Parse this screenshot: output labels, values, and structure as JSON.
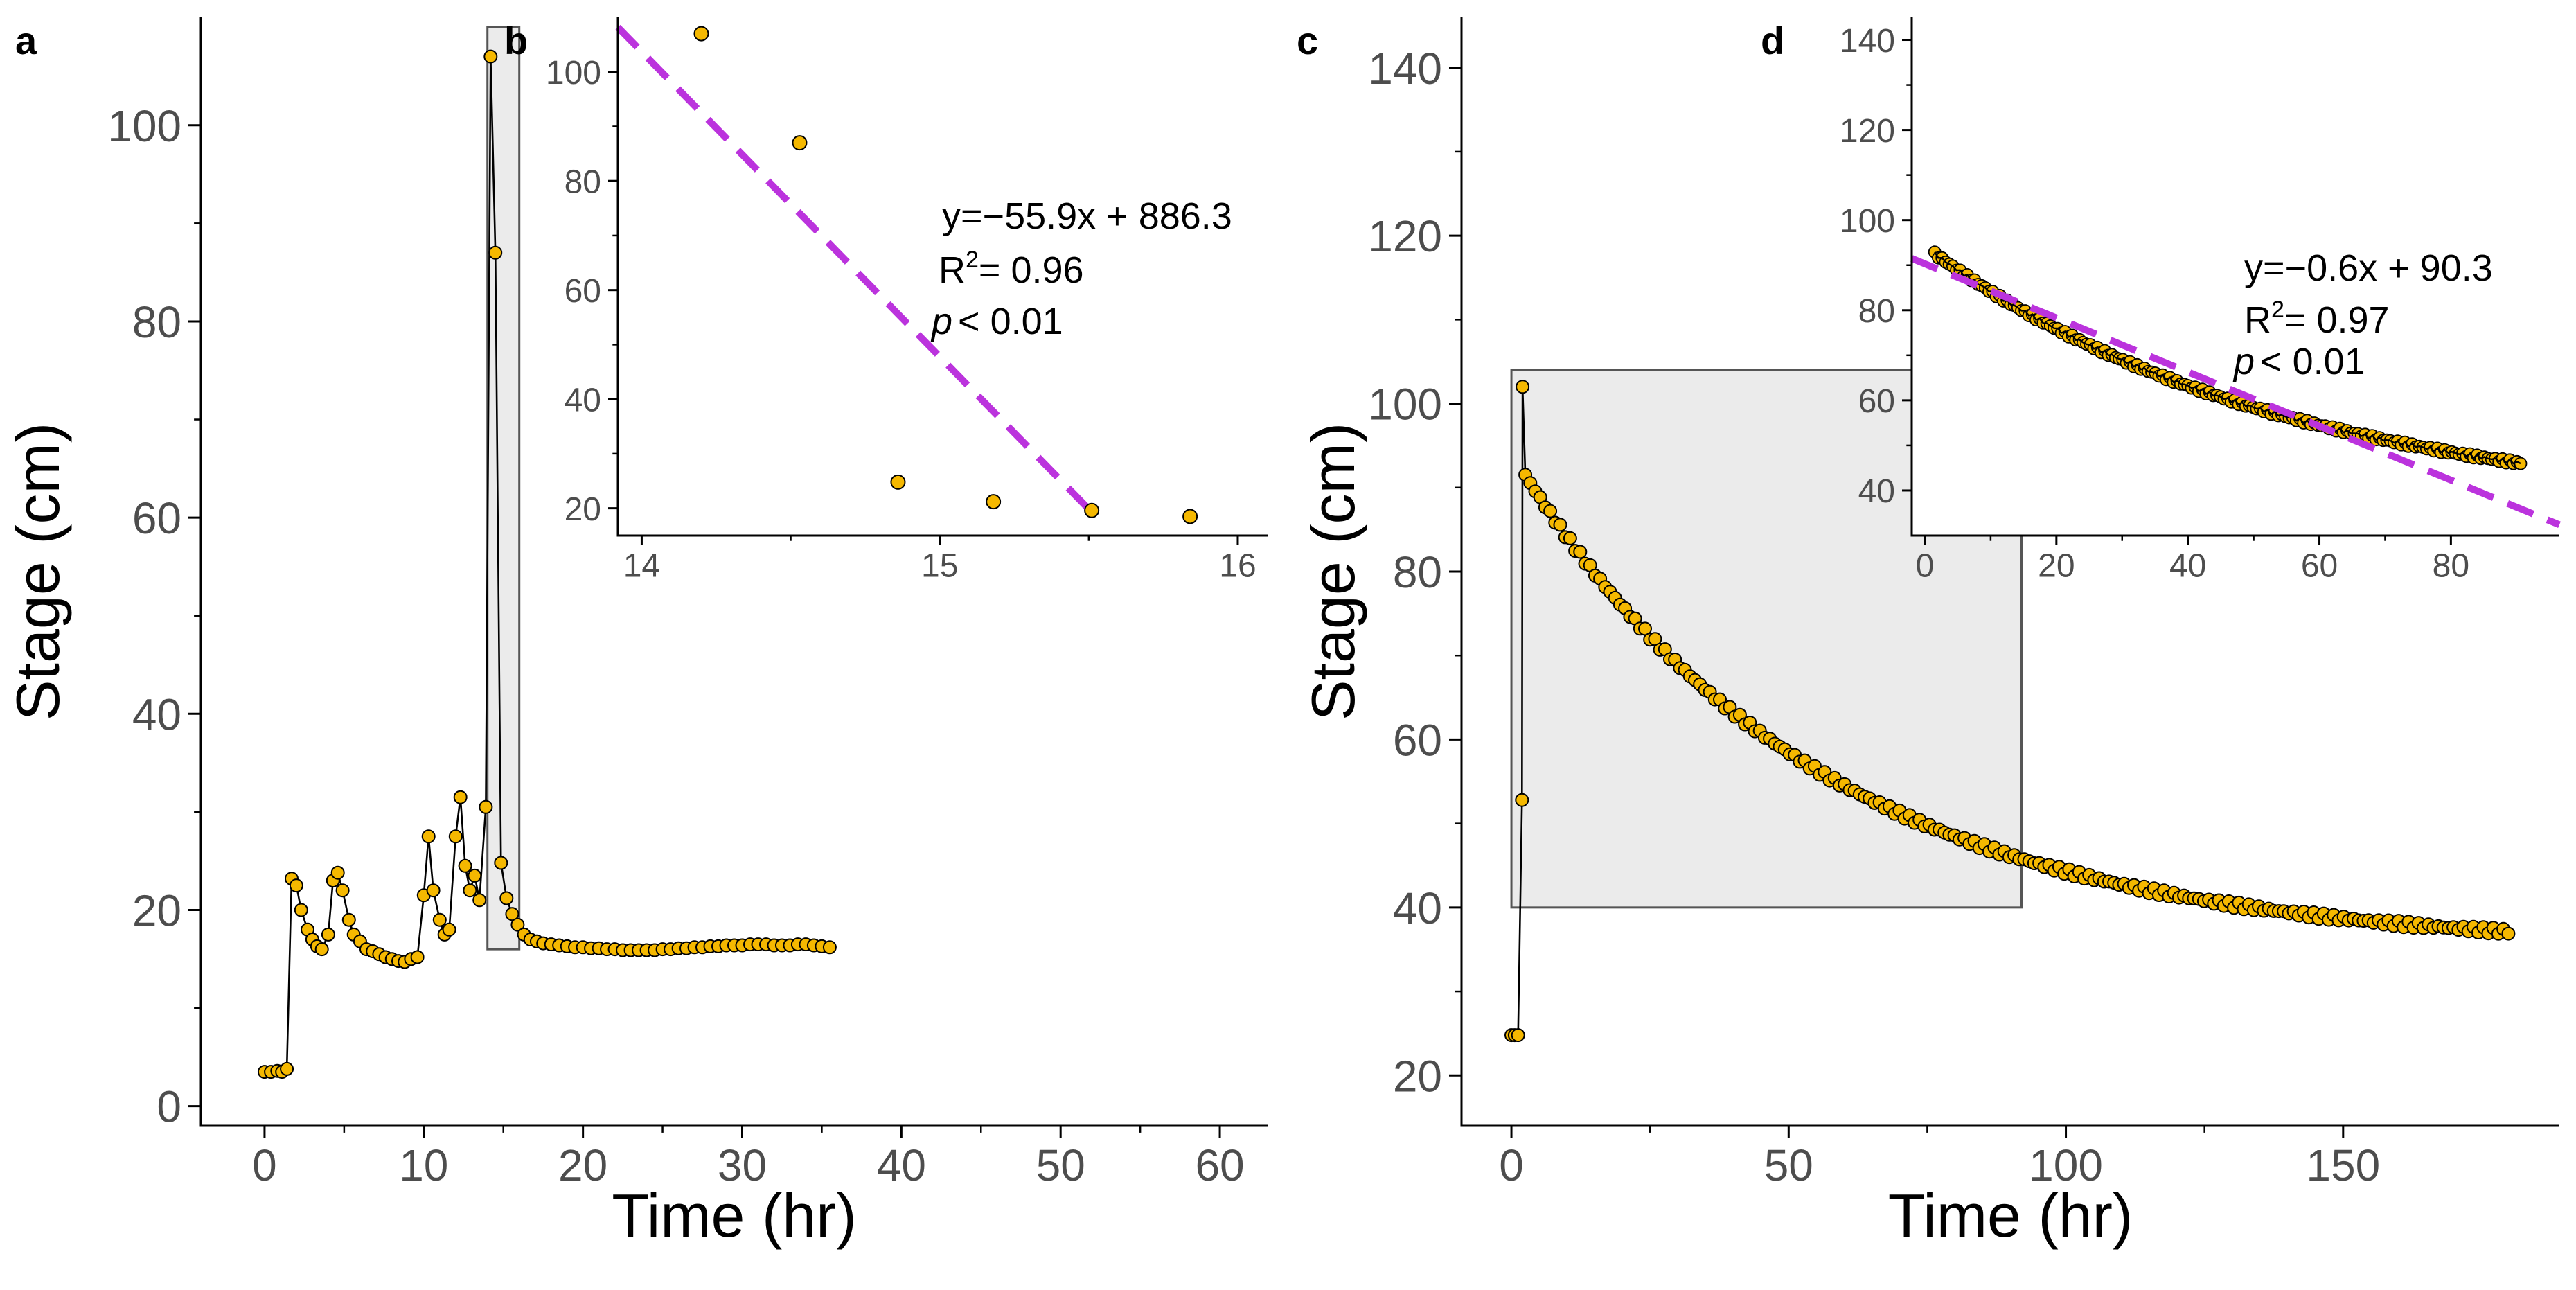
{
  "colors": {
    "point_fill": "#F5B800",
    "point_stroke": "#000000",
    "line": "#000000",
    "fit_line": "#BB33DD",
    "highlight_fill": "#EBEBEB",
    "highlight_stroke": "#555555",
    "axis": "#000000",
    "tick_label": "#4D4D4D"
  },
  "chart_data": [
    {
      "panel": "a",
      "type": "line",
      "markers": true,
      "xlabel": "Time (hr)",
      "ylabel": "Stage (cm)",
      "xlim": [
        -4,
        63
      ],
      "ylim": [
        -2,
        111
      ],
      "xticks": [
        0,
        10,
        20,
        30,
        40,
        50,
        60
      ],
      "yticks": [
        0,
        20,
        40,
        60,
        80,
        100
      ],
      "highlight": {
        "x": [
          14,
          16
        ],
        "y": [
          16,
          110
        ]
      },
      "series": [
        {
          "name": "stage",
          "points": [
            [
              0.0,
              3.5
            ],
            [
              0.4,
              3.5
            ],
            [
              0.8,
              3.6
            ],
            [
              1.1,
              3.5
            ],
            [
              1.4,
              3.8
            ],
            [
              1.7,
              23.2
            ],
            [
              2.0,
              22.5
            ],
            [
              2.3,
              20.0
            ],
            [
              2.7,
              18.0
            ],
            [
              3.0,
              17.0
            ],
            [
              3.3,
              16.3
            ],
            [
              3.6,
              16.0
            ],
            [
              4.0,
              17.5
            ],
            [
              4.3,
              23.0
            ],
            [
              4.6,
              23.8
            ],
            [
              4.9,
              22.0
            ],
            [
              5.3,
              19.0
            ],
            [
              5.6,
              17.5
            ],
            [
              6.0,
              16.8
            ],
            [
              6.4,
              16.0
            ],
            [
              6.8,
              15.8
            ],
            [
              7.2,
              15.5
            ],
            [
              7.6,
              15.2
            ],
            [
              8.0,
              15.0
            ],
            [
              8.4,
              14.8
            ],
            [
              8.8,
              14.7
            ],
            [
              9.2,
              15.0
            ],
            [
              9.6,
              15.2
            ],
            [
              10.0,
              21.5
            ],
            [
              10.3,
              27.5
            ],
            [
              10.6,
              22.0
            ],
            [
              11.0,
              19.0
            ],
            [
              11.3,
              17.5
            ],
            [
              11.6,
              18.0
            ],
            [
              12.0,
              27.5
            ],
            [
              12.3,
              31.5
            ],
            [
              12.6,
              24.5
            ],
            [
              12.9,
              22.0
            ],
            [
              13.2,
              23.5
            ],
            [
              13.5,
              21.0
            ],
            [
              13.9,
              30.5
            ],
            [
              14.2,
              107.0
            ],
            [
              14.5,
              87.0
            ],
            [
              14.85,
              24.8
            ],
            [
              15.2,
              21.2
            ],
            [
              15.55,
              19.6
            ],
            [
              15.9,
              18.5
            ],
            [
              16.3,
              17.5
            ],
            [
              16.7,
              17.0
            ],
            [
              17.1,
              16.8
            ],
            [
              17.5,
              16.6
            ],
            [
              18,
              16.5
            ],
            [
              18.5,
              16.4
            ],
            [
              19,
              16.3
            ],
            [
              19.5,
              16.2
            ],
            [
              20,
              16.2
            ],
            [
              20.5,
              16.1
            ],
            [
              21,
              16.1
            ],
            [
              21.5,
              16.0
            ],
            [
              22,
              16.0
            ],
            [
              22.5,
              15.9
            ],
            [
              23,
              15.9
            ],
            [
              23.5,
              15.9
            ],
            [
              24,
              15.9
            ],
            [
              24.5,
              15.9
            ],
            [
              25,
              16.0
            ],
            [
              25.5,
              16.0
            ],
            [
              26,
              16.1
            ],
            [
              26.5,
              16.1
            ],
            [
              27,
              16.2
            ],
            [
              27.5,
              16.2
            ],
            [
              28,
              16.3
            ],
            [
              28.5,
              16.3
            ],
            [
              29,
              16.4
            ],
            [
              29.5,
              16.4
            ],
            [
              30,
              16.4
            ],
            [
              30.5,
              16.5
            ],
            [
              31,
              16.5
            ],
            [
              31.5,
              16.5
            ],
            [
              32,
              16.4
            ],
            [
              32.5,
              16.4
            ],
            [
              33,
              16.4
            ],
            [
              33.5,
              16.5
            ],
            [
              34,
              16.5
            ],
            [
              34.5,
              16.4
            ],
            [
              35,
              16.3
            ],
            [
              35.5,
              16.2
            ]
          ]
        }
      ]
    },
    {
      "panel": "b",
      "type": "scatter",
      "xlim": [
        13.92,
        16.1
      ],
      "ylim": [
        15,
        110
      ],
      "xticks": [
        14,
        15,
        16
      ],
      "yticks": [
        20,
        40,
        60,
        80,
        100
      ],
      "points": [
        [
          14.2,
          107.0
        ],
        [
          14.53,
          87.0
        ],
        [
          14.86,
          24.8
        ],
        [
          15.18,
          21.2
        ],
        [
          15.51,
          19.6
        ],
        [
          15.84,
          18.5
        ]
      ],
      "fit": {
        "slope": -55.9,
        "intercept": 886.3,
        "x_range": [
          13.92,
          15.51
        ]
      },
      "annotation": {
        "equation": "y=−55.9x + 886.3",
        "r2_prefix": "R",
        "r2_sup": "2",
        "r2_value": "= 0.96",
        "p_symbol": "p",
        "p_value": "< 0.01"
      }
    },
    {
      "panel": "c",
      "type": "line",
      "markers": true,
      "xlabel": "Time (hr)",
      "ylabel": "Stage (cm)",
      "xlim": [
        -9,
        189
      ],
      "ylim": [
        14,
        146
      ],
      "xticks": [
        0,
        50,
        100,
        150
      ],
      "yticks": [
        20,
        40,
        60,
        80,
        100,
        120,
        140
      ],
      "highlight": {
        "x": [
          0,
          92
        ],
        "y": [
          40,
          104
        ]
      },
      "series": [
        {
          "name": "stage",
          "model": {
            "t0": 0,
            "t_peak": 2,
            "pre_stage": 24.8,
            "rise_stage": 52.8,
            "peak_stage": 102,
            "plateau": 35,
            "decay_amplitude": 57,
            "decay_rate": 0.0185,
            "end_time": 180
          }
        }
      ]
    },
    {
      "panel": "d",
      "type": "scatter",
      "xlim": [
        -2,
        96.5
      ],
      "ylim": [
        30,
        145
      ],
      "xticks": [
        0,
        20,
        40,
        60,
        80
      ],
      "yticks": [
        40,
        60,
        80,
        100,
        120,
        140
      ],
      "fit": {
        "slope": -0.6,
        "intercept": 90.3,
        "x_range": [
          -2,
          96.5
        ]
      },
      "points_model": {
        "from": 1.5,
        "to": 91
      },
      "annotation": {
        "equation": "y=−0.6x + 90.3",
        "r2_prefix": "R",
        "r2_sup": "2",
        "r2_value": "= 0.97",
        "p_symbol": "p",
        "p_value": "< 0.01"
      }
    }
  ]
}
